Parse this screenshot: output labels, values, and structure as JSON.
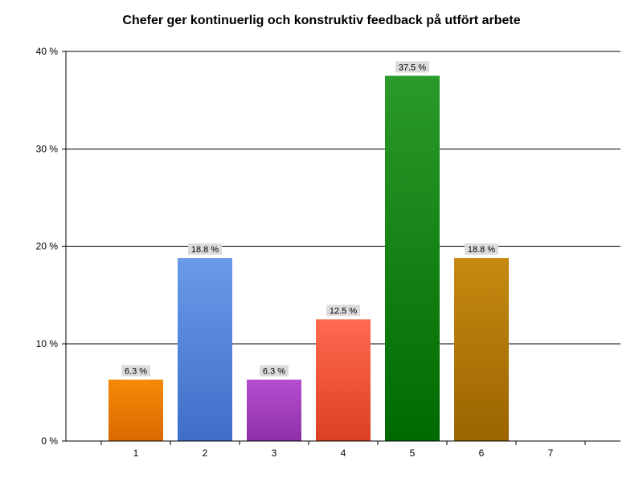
{
  "chart_data": {
    "type": "bar",
    "title": "Chefer ger kontinuerlig och konstruktiv feedback på utfört arbete",
    "xlabel": "",
    "ylabel": "",
    "categories": [
      "1",
      "2",
      "3",
      "4",
      "5",
      "6",
      "7"
    ],
    "values": [
      6.3,
      18.8,
      6.3,
      12.5,
      37.5,
      18.8,
      0
    ],
    "data_labels": [
      "6.3 %",
      "18.8 %",
      "6.3 %",
      "12.5 %",
      "37.5 %",
      "18.8 %",
      ""
    ],
    "ylim": [
      0,
      40
    ],
    "yticks": [
      0,
      10,
      20,
      30,
      40
    ],
    "ytick_labels": [
      "0 %",
      "10 %",
      "20 %",
      "30 %",
      "40 %"
    ],
    "grid": "horizontal",
    "legend": "none",
    "bar_colors": [
      [
        "#f58a07",
        "#d96a00"
      ],
      [
        "#6a9ae8",
        "#3f6ec8"
      ],
      [
        "#b44fd0",
        "#8e2fa8"
      ],
      [
        "#ff6a50",
        "#dd3f24"
      ],
      [
        "#2a9a2a",
        "#006a00"
      ],
      [
        "#c68a10",
        "#9a6400"
      ],
      [
        "#999999",
        "#777777"
      ]
    ]
  }
}
